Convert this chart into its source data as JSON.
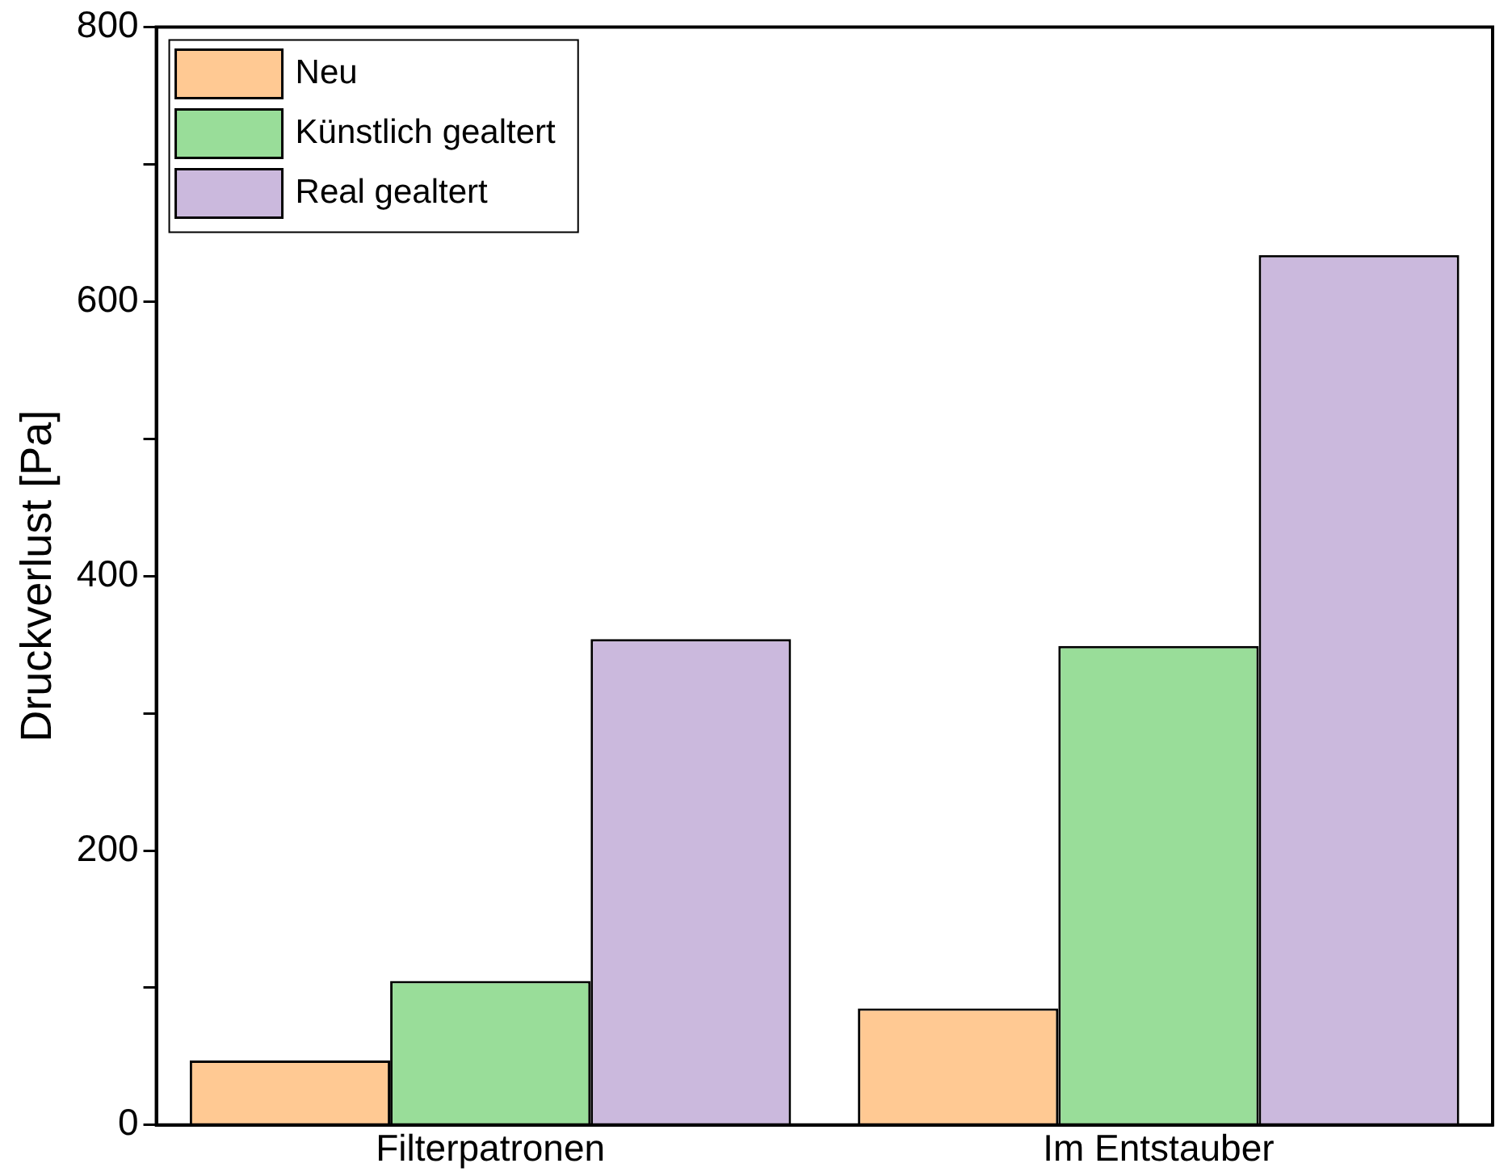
{
  "chart_data": {
    "type": "bar",
    "ylabel": "Druckverlust [Pa]",
    "categories": [
      "Filterpatronen",
      "Im Entstauber"
    ],
    "series": [
      {
        "name": "Neu",
        "color": "#ffc993",
        "values": [
          47,
          85
        ]
      },
      {
        "name": "Künstlich gealtert",
        "color": "#99dd99",
        "values": [
          105,
          349
        ]
      },
      {
        "name": "Real gealtert",
        "color": "#cbb9dd",
        "values": [
          354,
          634
        ]
      }
    ],
    "ylim": [
      0,
      800
    ],
    "yticks": [
      0,
      {
        "value": 100,
        "label": null
      },
      200,
      {
        "value": 300,
        "label": null
      },
      400,
      {
        "value": 500,
        "label": null
      },
      600,
      {
        "value": 700,
        "label": null
      },
      800
    ],
    "grid": false,
    "legend": "top left"
  }
}
